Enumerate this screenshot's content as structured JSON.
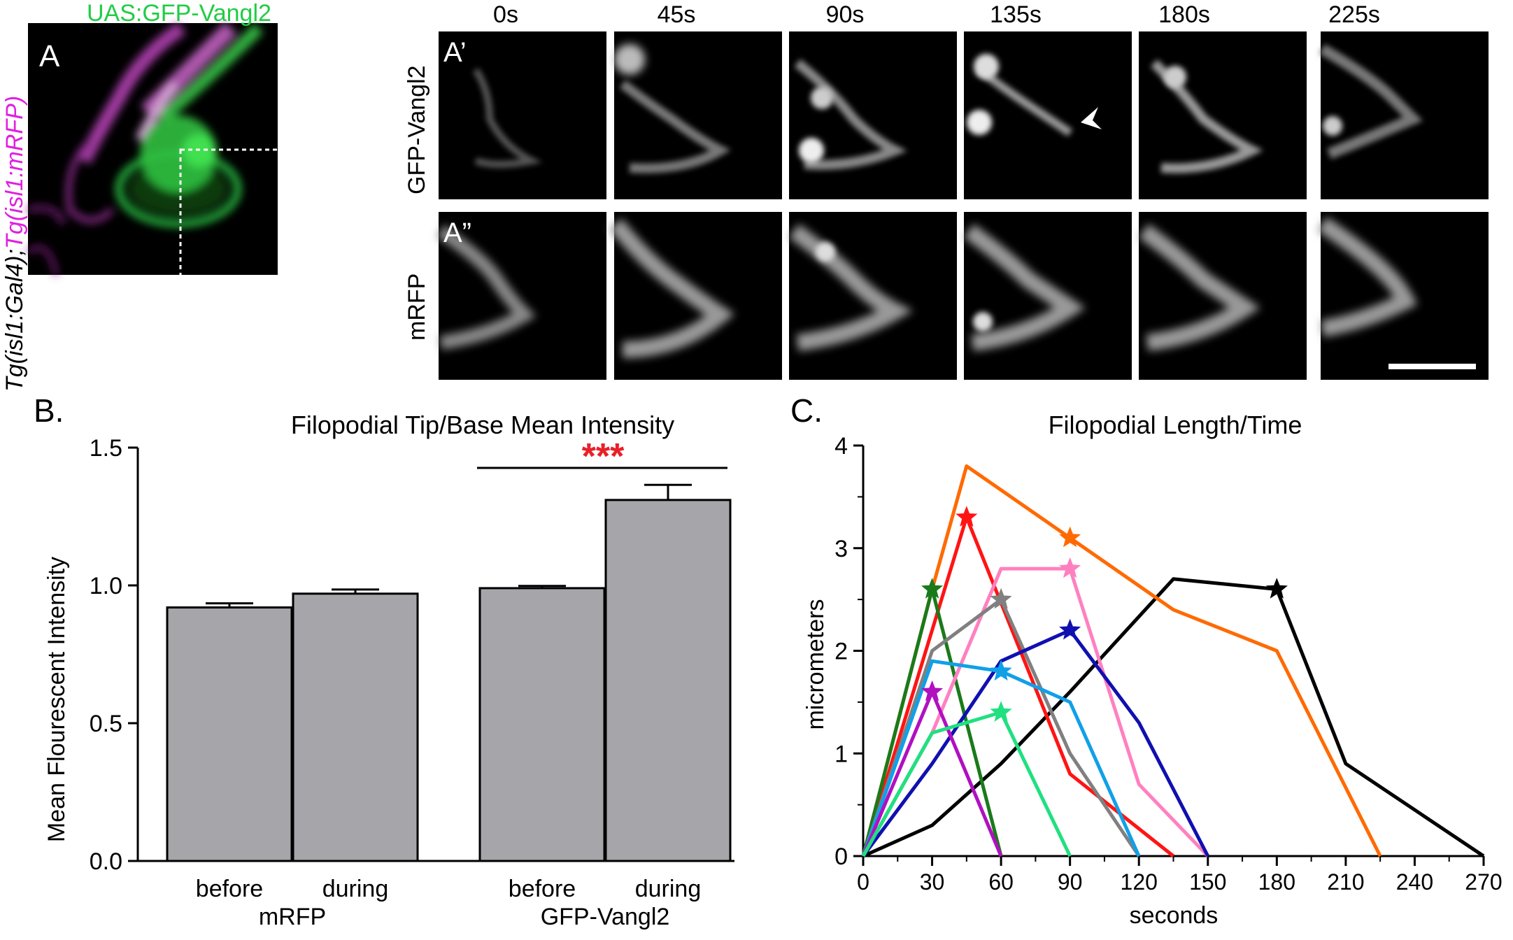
{
  "panel_a": {
    "letter": "A",
    "title": "UAS:GFP-Vangl2",
    "side_label_black": "Tg(isl1:Gal4);",
    "side_label_magenta": "Tg(isl1:mRFP)",
    "colors": {
      "green": "#22cc44",
      "magenta": "#e020e0"
    }
  },
  "panel_a_prime": {
    "letter": "A’",
    "row_label": "GFP-Vangl2"
  },
  "panel_a_dprime": {
    "letter": "A”",
    "row_label": "mRFP"
  },
  "timepoints": [
    "0s",
    "45s",
    "90s",
    "135s",
    "180s",
    "225s"
  ],
  "chart_data": [
    {
      "panel": "B.",
      "type": "bar",
      "title": "Filopodial Tip/Base Mean Intensity",
      "ylabel": "Mean Flourescent Intensity",
      "ylim": [
        0.0,
        1.5
      ],
      "yticks": [
        "0.0",
        "0.5",
        "1.0",
        "1.5"
      ],
      "groups": [
        {
          "name": "mRFP",
          "bars": [
            {
              "label": "before",
              "value": 0.92,
              "error": 0.015
            },
            {
              "label": "during",
              "value": 0.97,
              "error": 0.015
            }
          ]
        },
        {
          "name": "GFP-Vangl2",
          "bars": [
            {
              "label": "before",
              "value": 0.99,
              "error": 0.008
            },
            {
              "label": "during",
              "value": 1.31,
              "error": 0.055
            }
          ]
        }
      ],
      "significance": "***",
      "bar_color": "#a6a6aa",
      "sig_color": "#e8202a"
    },
    {
      "panel": "C.",
      "type": "line",
      "title": "Filopodial Length/Time",
      "xlabel": "seconds",
      "ylabel": "micrometers",
      "xlim": [
        0,
        270
      ],
      "ylim": [
        0,
        4
      ],
      "xticks": [
        "0",
        "30",
        "60",
        "90",
        "120",
        "150",
        "180",
        "210",
        "240",
        "270"
      ],
      "yticks": [
        "0",
        "1",
        "2",
        "3",
        "4"
      ],
      "series": [
        {
          "color": "#000000",
          "points": [
            [
              0,
              0
            ],
            [
              30,
              0.3
            ],
            [
              60,
              0.9
            ],
            [
              90,
              1.6
            ],
            [
              135,
              2.7
            ],
            [
              180,
              2.6
            ],
            [
              210,
              0.9
            ],
            [
              270,
              0
            ]
          ],
          "star": [
            180,
            2.6
          ]
        },
        {
          "color": "#ff6a00",
          "points": [
            [
              0,
              0
            ],
            [
              30,
              2.6
            ],
            [
              45,
              3.8
            ],
            [
              90,
              3.1
            ],
            [
              135,
              2.4
            ],
            [
              180,
              2.0
            ],
            [
              225,
              0
            ]
          ],
          "star": [
            90,
            3.1
          ]
        },
        {
          "color": "#ff1414",
          "points": [
            [
              0,
              0
            ],
            [
              45,
              3.3
            ],
            [
              90,
              0.8
            ],
            [
              135,
              0
            ]
          ],
          "star": [
            45,
            3.3
          ]
        },
        {
          "color": "#1a7a1a",
          "points": [
            [
              0,
              0
            ],
            [
              30,
              2.6
            ],
            [
              60,
              0
            ]
          ],
          "star": [
            30,
            2.6
          ]
        },
        {
          "color": "#ff80c0",
          "points": [
            [
              0,
              0
            ],
            [
              30,
              1.2
            ],
            [
              60,
              2.8
            ],
            [
              90,
              2.8
            ],
            [
              120,
              0.7
            ],
            [
              150,
              0
            ]
          ],
          "star": [
            90,
            2.8
          ]
        },
        {
          "color": "#808080",
          "points": [
            [
              0,
              0
            ],
            [
              30,
              2.0
            ],
            [
              60,
              2.5
            ],
            [
              90,
              1.0
            ],
            [
              120,
              0
            ]
          ],
          "star": [
            60,
            2.5
          ]
        },
        {
          "color": "#1010b0",
          "points": [
            [
              0,
              0
            ],
            [
              30,
              0.9
            ],
            [
              60,
              1.9
            ],
            [
              90,
              2.2
            ],
            [
              120,
              1.3
            ],
            [
              150,
              0
            ]
          ],
          "star": [
            90,
            2.2
          ]
        },
        {
          "color": "#10a0e8",
          "points": [
            [
              0,
              0
            ],
            [
              30,
              1.9
            ],
            [
              60,
              1.8
            ],
            [
              90,
              1.5
            ],
            [
              120,
              0
            ]
          ],
          "star": [
            60,
            1.8
          ]
        },
        {
          "color": "#b010c0",
          "points": [
            [
              0,
              0
            ],
            [
              30,
              1.6
            ],
            [
              60,
              0
            ]
          ],
          "star": [
            30,
            1.6
          ]
        },
        {
          "color": "#20e080",
          "points": [
            [
              0,
              0
            ],
            [
              30,
              1.2
            ],
            [
              60,
              1.4
            ],
            [
              90,
              0
            ]
          ],
          "star": [
            60,
            1.4
          ]
        }
      ]
    }
  ]
}
